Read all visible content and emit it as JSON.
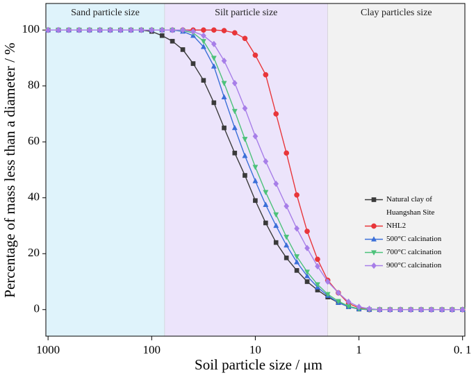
{
  "chart_data": {
    "type": "line",
    "xlabel": "Soil particle size / μm",
    "ylabel": "Percentage of mass less than a diameter / %",
    "xscale": "log",
    "xreversed": true,
    "xlim": [
      1050,
      0.095
    ],
    "xticks": [
      1000,
      100,
      10,
      1,
      {
        "value": 0.1,
        "label": "0. 1"
      }
    ],
    "ylim": [
      -9.5,
      109.5
    ],
    "yticks": [
      0,
      20,
      40,
      60,
      80,
      100
    ],
    "legend": "right",
    "regions": [
      {
        "label": "Sand particle size",
        "to": 75,
        "color": "#dff3fb"
      },
      {
        "label": "Silt particle size",
        "from": 75,
        "to": 2,
        "color": "#ece4fb"
      },
      {
        "label": "Clay particles size",
        "from": 2,
        "color": "#f2f2f2"
      }
    ],
    "x": [
      1000,
      794.3,
      631,
      501.2,
      398.1,
      316.2,
      251.2,
      199.5,
      158.5,
      125.9,
      100,
      79.4,
      63.1,
      50.1,
      39.8,
      31.6,
      25.1,
      20,
      15.8,
      12.6,
      10,
      7.94,
      6.31,
      5.01,
      3.98,
      3.16,
      2.51,
      2,
      1.58,
      1.26,
      1,
      0.794,
      0.631,
      0.501,
      0.398,
      0.316,
      0.251,
      0.2,
      0.158,
      0.126,
      0.1
    ],
    "series": [
      {
        "name": "Natural clay of Huangshan Site",
        "color": "#3a3a3a",
        "marker": "square",
        "values": [
          100,
          100,
          100,
          100,
          100,
          100,
          100,
          100,
          100,
          100,
          99.5,
          98,
          96,
          93,
          88,
          82,
          74,
          65,
          56,
          48,
          39,
          31,
          24,
          18.5,
          14,
          10,
          7,
          4.5,
          2.5,
          1,
          0.2,
          0,
          0,
          0,
          0,
          0,
          0,
          0,
          0,
          0,
          0
        ]
      },
      {
        "name": "NHL2",
        "color": "#e8363a",
        "marker": "circle",
        "values": [
          100,
          100,
          100,
          100,
          100,
          100,
          100,
          100,
          100,
          100,
          100,
          100,
          100,
          100,
          100,
          100,
          100,
          99.8,
          99,
          97,
          91,
          84,
          70,
          56,
          41,
          28,
          18,
          10.5,
          6,
          2.2,
          0.6,
          0,
          0,
          0,
          0,
          0,
          0,
          0,
          0,
          0,
          0
        ]
      },
      {
        "name": "500°C calcination",
        "color": "#3b6fd8",
        "marker": "triangle-up",
        "values": [
          100,
          100,
          100,
          100,
          100,
          100,
          100,
          100,
          100,
          100,
          100,
          100,
          100,
          99.5,
          98,
          94,
          87,
          76,
          65,
          55,
          46,
          37.5,
          30,
          23,
          17,
          12,
          8,
          5,
          2.5,
          1,
          0.2,
          0,
          0,
          0,
          0,
          0,
          0,
          0,
          0,
          0,
          0
        ]
      },
      {
        "name": "700°C calcination",
        "color": "#4cc27a",
        "marker": "triangle-down",
        "values": [
          100,
          100,
          100,
          100,
          100,
          100,
          100,
          100,
          100,
          100,
          100,
          100,
          100,
          99.8,
          99,
          96,
          90,
          81,
          71,
          61,
          51,
          42,
          34,
          26,
          19,
          13.5,
          9,
          5.5,
          3,
          1.2,
          0.3,
          0,
          0,
          0,
          0,
          0,
          0,
          0,
          0,
          0,
          0
        ]
      },
      {
        "name": "900°C calcination",
        "color": "#a77ee8",
        "marker": "diamond",
        "values": [
          100,
          100,
          100,
          100,
          100,
          100,
          100,
          100,
          100,
          100,
          100,
          100,
          100,
          100,
          99.5,
          98,
          95,
          89,
          81,
          72,
          62,
          53,
          45,
          37,
          29,
          22,
          15.5,
          10,
          6,
          2.8,
          1,
          0.3,
          0,
          0,
          0,
          0,
          0,
          0,
          0,
          0,
          0
        ]
      }
    ]
  }
}
